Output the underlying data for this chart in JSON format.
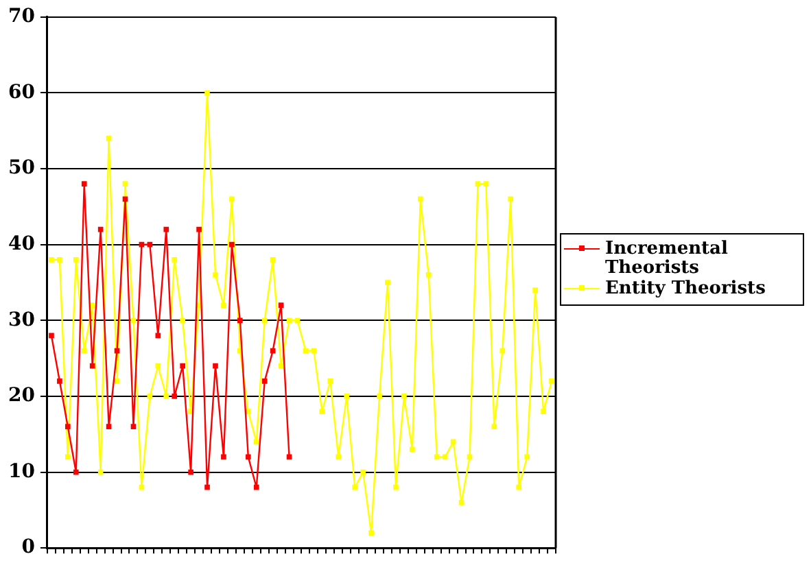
{
  "chart_data": {
    "type": "line",
    "categories": [
      null,
      null,
      null,
      null,
      null,
      null,
      null,
      null,
      null,
      null,
      null,
      null,
      null,
      null,
      null,
      null,
      null,
      null,
      null,
      null,
      null,
      null,
      null,
      null,
      null,
      null,
      null,
      null,
      null,
      null,
      null,
      null,
      null,
      null,
      null,
      null,
      null,
      null,
      null,
      null,
      null,
      null,
      null,
      null,
      null,
      null,
      null,
      null,
      null,
      null,
      null,
      null,
      null,
      null,
      null,
      null,
      null,
      null,
      null,
      null,
      null,
      null
    ],
    "series": [
      {
        "name": "Incremental Theorists",
        "color": "#ff0000",
        "values": [
          28,
          22,
          16,
          10,
          48,
          24,
          42,
          16,
          26,
          46,
          16,
          40,
          40,
          28,
          42,
          20,
          24,
          10,
          42,
          8,
          24,
          12,
          40,
          30,
          12,
          8,
          22,
          26,
          32,
          12,
          null,
          null,
          null,
          null,
          null,
          null,
          null,
          null,
          null,
          null,
          null,
          null,
          null,
          null,
          null,
          null,
          null,
          null,
          null,
          null,
          null,
          null,
          null,
          null,
          null,
          null,
          null,
          null,
          null,
          null,
          null,
          null
        ]
      },
      {
        "name": "Entity Theorists",
        "color": "#ffff00",
        "values": [
          38,
          38,
          12,
          38,
          26,
          32,
          10,
          54,
          22,
          48,
          30,
          8,
          20,
          24,
          20,
          38,
          30,
          18,
          32,
          60,
          36,
          32,
          46,
          26,
          18,
          14,
          30,
          38,
          24,
          30,
          30,
          26,
          26,
          18,
          22,
          12,
          20,
          8,
          10,
          2,
          20,
          35,
          8,
          20,
          13,
          46,
          36,
          12,
          12,
          14,
          6,
          12,
          48,
          48,
          16,
          26,
          46,
          8,
          12,
          34,
          18,
          22
        ]
      }
    ],
    "ylim": [
      0,
      70
    ],
    "yticks": [
      0,
      10,
      20,
      30,
      40,
      50,
      60,
      70
    ],
    "grid": "y",
    "legend": "right",
    "marker": "square",
    "line_style": "solid",
    "tick_labels": "y"
  }
}
